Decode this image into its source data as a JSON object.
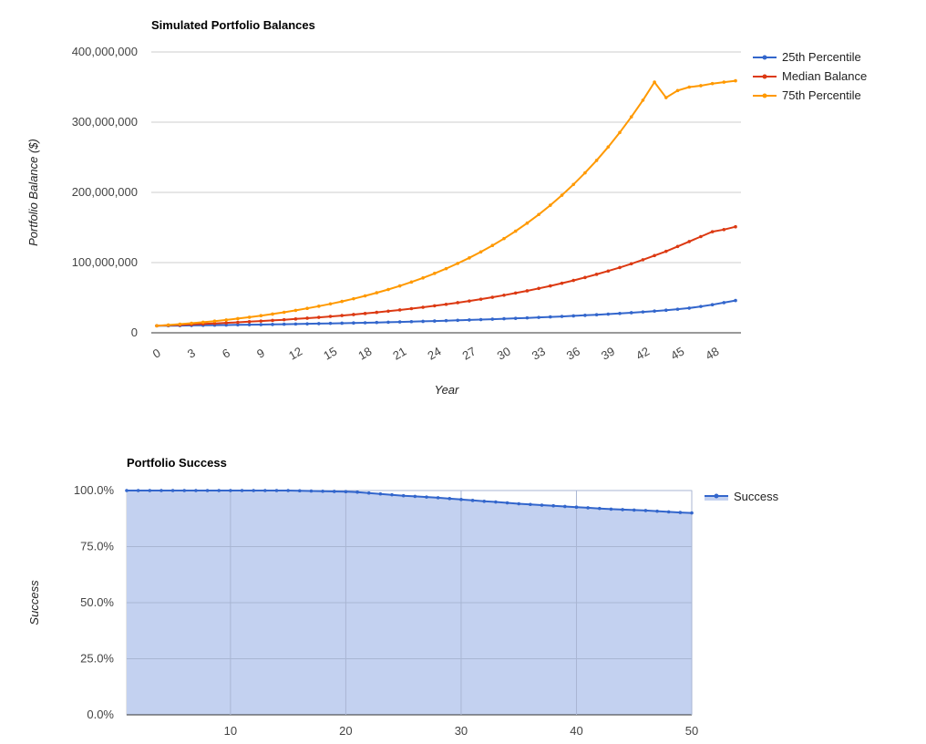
{
  "chart_data": [
    {
      "type": "line",
      "title": "Simulated Portfolio Balances",
      "xlabel": "Year",
      "ylabel": "Portfolio Balance ($)",
      "x_ticks": [
        "0",
        "3",
        "6",
        "9",
        "12",
        "15",
        "18",
        "21",
        "24",
        "27",
        "30",
        "33",
        "36",
        "39",
        "42",
        "45",
        "48"
      ],
      "y_ticks": [
        "0",
        "100,000,000",
        "200,000,000",
        "300,000,000",
        "400,000,000"
      ],
      "ylim": [
        0,
        400000000
      ],
      "xlim": [
        0,
        50
      ],
      "legend_position": "right",
      "grid": true,
      "series": [
        {
          "name": "25th Percentile",
          "color": "#3366cc",
          "x": [
            0,
            1,
            2,
            3,
            4,
            5,
            6,
            7,
            8,
            9,
            10,
            11,
            12,
            13,
            14,
            15,
            16,
            17,
            18,
            19,
            20,
            21,
            22,
            23,
            24,
            25,
            26,
            27,
            28,
            29,
            30,
            31,
            32,
            33,
            34,
            35,
            36,
            37,
            38,
            39,
            40,
            41,
            42,
            43,
            44,
            45,
            46,
            47,
            48,
            49,
            50
          ],
          "values": [
            10000000,
            10100000,
            10300000,
            10500000,
            10700000,
            10900000,
            11100000,
            11300000,
            11500000,
            11700000,
            11900000,
            12200000,
            12500000,
            12800000,
            13100000,
            13400000,
            13700000,
            14000000,
            14300000,
            14700000,
            15100000,
            15500000,
            15900000,
            16300000,
            16800000,
            17300000,
            17800000,
            18300000,
            18800000,
            19400000,
            20000000,
            20600000,
            21200000,
            21900000,
            22600000,
            23300000,
            24100000,
            24900000,
            25700000,
            26600000,
            27600000,
            28600000,
            29700000,
            30900000,
            32200000,
            33600000,
            35200000,
            37500000,
            40000000,
            43000000,
            46000000
          ]
        },
        {
          "name": "Median Balance",
          "color": "#dc3912",
          "x": [
            0,
            1,
            2,
            3,
            4,
            5,
            6,
            7,
            8,
            9,
            10,
            11,
            12,
            13,
            14,
            15,
            16,
            17,
            18,
            19,
            20,
            21,
            22,
            23,
            24,
            25,
            26,
            27,
            28,
            29,
            30,
            31,
            32,
            33,
            34,
            35,
            36,
            37,
            38,
            39,
            40,
            41,
            42,
            43,
            44,
            45,
            46,
            47,
            48,
            49,
            50
          ],
          "values": [
            10000000,
            10600000,
            11200000,
            11900000,
            12600000,
            13300000,
            14100000,
            14900000,
            15800000,
            16700000,
            17600000,
            18600000,
            19700000,
            20800000,
            22000000,
            23300000,
            24600000,
            26000000,
            27500000,
            29100000,
            30800000,
            32500000,
            34400000,
            36300000,
            38400000,
            40600000,
            42900000,
            45300000,
            47900000,
            50600000,
            53500000,
            56600000,
            59800000,
            63200000,
            66800000,
            70600000,
            74600000,
            78800000,
            83300000,
            88000000,
            93000000,
            98300000,
            104000000,
            110000000,
            116000000,
            123000000,
            130000000,
            137000000,
            144000000,
            147000000,
            151000000
          ]
        },
        {
          "name": "75th Percentile",
          "color": "#ff9900",
          "x": [
            0,
            1,
            2,
            3,
            4,
            5,
            6,
            7,
            8,
            9,
            10,
            11,
            12,
            13,
            14,
            15,
            16,
            17,
            18,
            19,
            20,
            21,
            22,
            23,
            24,
            25,
            26,
            27,
            28,
            29,
            30,
            31,
            32,
            33,
            34,
            35,
            36,
            37,
            38,
            39,
            40,
            41,
            42,
            43,
            44,
            45,
            46,
            47,
            48,
            49,
            50
          ],
          "values": [
            10000000,
            11100000,
            12300000,
            13600000,
            15000000,
            16600000,
            18300000,
            20200000,
            22200000,
            24400000,
            26700000,
            29200000,
            31900000,
            34800000,
            37900000,
            41200000,
            44700000,
            48500000,
            52600000,
            57000000,
            61700000,
            66800000,
            72300000,
            78200000,
            84600000,
            91400000,
            98800000,
            106700000,
            115200000,
            124400000,
            134200000,
            144800000,
            156200000,
            168500000,
            181700000,
            196000000,
            211300000,
            227800000,
            245600000,
            264700000,
            285300000,
            307500000,
            331300000,
            357000000,
            335000000,
            345000000,
            350000000,
            352000000,
            355000000,
            357000000,
            359000000
          ]
        }
      ]
    },
    {
      "type": "area",
      "title": "Portfolio Success",
      "xlabel": "",
      "ylabel": "Success",
      "x_ticks": [
        "10",
        "20",
        "30",
        "40",
        "50"
      ],
      "y_ticks": [
        "0.0%",
        "25.0%",
        "50.0%",
        "75.0%",
        "100.0%"
      ],
      "ylim": [
        0,
        100
      ],
      "xlim": [
        1,
        50
      ],
      "legend_position": "right",
      "grid": true,
      "series": [
        {
          "name": "Success",
          "color": "#3366cc",
          "fill": "#c3d1f0",
          "x": [
            1,
            2,
            3,
            4,
            5,
            6,
            7,
            8,
            9,
            10,
            11,
            12,
            13,
            14,
            15,
            16,
            17,
            18,
            19,
            20,
            21,
            22,
            23,
            24,
            25,
            26,
            27,
            28,
            29,
            30,
            31,
            32,
            33,
            34,
            35,
            36,
            37,
            38,
            39,
            40,
            41,
            42,
            43,
            44,
            45,
            46,
            47,
            48,
            49,
            50
          ],
          "values": [
            100,
            100,
            100,
            100,
            100,
            100,
            100,
            100,
            100,
            100,
            100,
            100,
            100,
            100,
            100,
            99.9,
            99.8,
            99.7,
            99.6,
            99.5,
            99.3,
            98.9,
            98.5,
            98.1,
            97.7,
            97.4,
            97.1,
            96.8,
            96.4,
            96.0,
            95.6,
            95.2,
            94.9,
            94.5,
            94.1,
            93.8,
            93.5,
            93.2,
            92.9,
            92.6,
            92.3,
            92.0,
            91.7,
            91.5,
            91.3,
            91.1,
            90.8,
            90.5,
            90.2,
            90.0
          ]
        }
      ]
    }
  ]
}
